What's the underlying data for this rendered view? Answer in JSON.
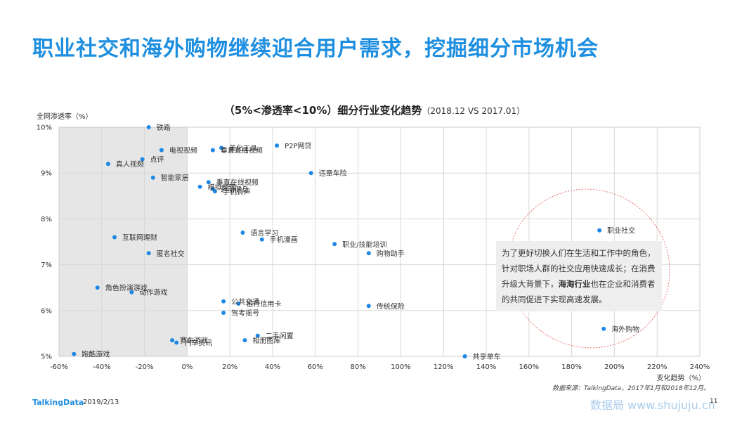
{
  "page": {
    "title": "职业社交和海外购物继续迎合用户需求，挖掘细分市场机会",
    "logo": "TalkingData",
    "date": "2019/2/13",
    "page_number": "11",
    "source": "数据来源：TalkingData，2017年1月和2018年12月。",
    "watermark": "数据局 www.shujuju.cn"
  },
  "annotation": {
    "pre": "为了更好切换人们在生活和工作中的角色，针对职场人群的社交应用快速成长；在消费升级大背景下，",
    "bold": "海淘行业",
    "post": "也在企业和消费者的共同促进下实现高速发展。"
  },
  "colors": {
    "accent": "#1e8fe0",
    "point": "#1e88e5",
    "negative_region": "#e6e6e6",
    "ellipse": "#e05050"
  },
  "chart_data": {
    "type": "scatter",
    "title": "（5%<渗透率<10%）细分行业变化趋势",
    "subtitle": "（2018.12 VS 2017.01）",
    "xlabel": "变化趋势（%）",
    "ylabel": "全网渗透率（%）",
    "xlim": [
      -60,
      240
    ],
    "ylim": [
      5,
      10
    ],
    "xticks": [
      "-60%",
      "-40%",
      "-20%",
      "0%",
      "20%",
      "40%",
      "60%",
      "80%",
      "100%",
      "120%",
      "140%",
      "160%",
      "180%",
      "200%",
      "220%",
      "240%"
    ],
    "yticks": [
      "5%",
      "6%",
      "7%",
      "8%",
      "9%",
      "10%"
    ],
    "grid": true,
    "shaded_negative_x": true,
    "points": [
      {
        "label": "铁路",
        "x": -18,
        "y": 10.0
      },
      {
        "label": "电视视频",
        "x": -12,
        "y": 9.5
      },
      {
        "label": "点评",
        "x": -21,
        "y": 9.3
      },
      {
        "label": "真人视频",
        "x": -37,
        "y": 9.2
      },
      {
        "label": "智能家居",
        "x": -16,
        "y": 8.9
      },
      {
        "label": "美化工具",
        "x": 16,
        "y": 9.55
      },
      {
        "label": "垂直直播视频",
        "x": 12,
        "y": 9.5
      },
      {
        "label": "P2P网贷",
        "x": 42,
        "y": 9.6
      },
      {
        "label": "违章车险",
        "x": 58,
        "y": 9.0
      },
      {
        "label": "垂直在线视频",
        "x": 10,
        "y": 8.8
      },
      {
        "label": "模拟经营",
        "x": 6,
        "y": 8.7
      },
      {
        "label": "运动健身",
        "x": 12,
        "y": 8.65
      },
      {
        "label": "手机铃声",
        "x": 13,
        "y": 8.6
      },
      {
        "label": "语言学习",
        "x": 26,
        "y": 7.7
      },
      {
        "label": "手机漫画",
        "x": 35,
        "y": 7.55
      },
      {
        "label": "职业/技能培训",
        "x": 69,
        "y": 7.45
      },
      {
        "label": "购物助手",
        "x": 85,
        "y": 7.25
      },
      {
        "label": "职业社交",
        "x": 193,
        "y": 7.75
      },
      {
        "label": "互联网理财",
        "x": -34,
        "y": 7.6
      },
      {
        "label": "匿名社交",
        "x": -18,
        "y": 7.25
      },
      {
        "label": "角色扮演游戏",
        "x": -42,
        "y": 6.5
      },
      {
        "label": "动作游戏",
        "x": -26,
        "y": 6.4
      },
      {
        "label": "公共交通",
        "x": 17,
        "y": 6.2
      },
      {
        "label": "银行信用卡",
        "x": 24,
        "y": 6.15
      },
      {
        "label": "驾考摇号",
        "x": 17,
        "y": 5.95
      },
      {
        "label": "传统保险",
        "x": 85,
        "y": 6.1
      },
      {
        "label": "海外购物",
        "x": 195,
        "y": 5.6
      },
      {
        "label": "赛车游戏",
        "x": -7,
        "y": 5.35
      },
      {
        "label": "汽车资讯",
        "x": -5,
        "y": 5.3
      },
      {
        "label": "二手闲置",
        "x": 33,
        "y": 5.45
      },
      {
        "label": "相册图库",
        "x": 27,
        "y": 5.35
      },
      {
        "label": "跑酷游戏",
        "x": -53,
        "y": 5.05
      },
      {
        "label": "共享单车",
        "x": 130,
        "y": 5.0
      }
    ]
  }
}
